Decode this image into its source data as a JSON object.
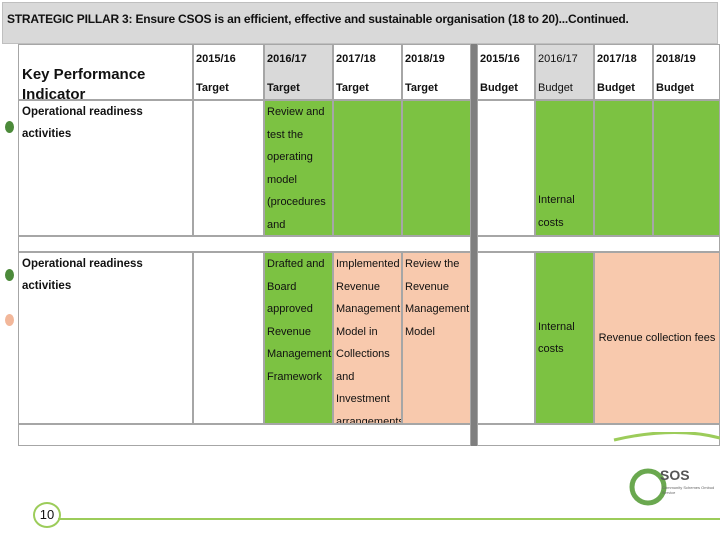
{
  "title": "STRATEGIC PILLAR 3: Ensure CSOS is an efficient, effective and sustainable organisation (18 to 20)...Continued.",
  "table": {
    "kpi_header": "Key Performance Indicator",
    "columns": [
      {
        "year": "2015/16",
        "sub": "Target"
      },
      {
        "year": "2016/17",
        "sub": "Target"
      },
      {
        "year": "2017/18",
        "sub": "Target"
      },
      {
        "year": "2018/19",
        "sub": "Target"
      },
      {
        "year": "2015/16",
        "sub": "Budget"
      },
      {
        "year": "2016/17",
        "sub": "Budget"
      },
      {
        "year": "2017/18",
        "sub": "Budget"
      },
      {
        "year": "2018/19",
        "sub": "Budget"
      }
    ],
    "rows": [
      {
        "label": "Operational readiness activities",
        "target_2016_17": "Review and test the operating model (procedures and systems) for service delivery",
        "budget_2016_17": "Internal costs"
      },
      {
        "label": "Operational readiness activities",
        "target_2016_17": "Drafted and Board approved Revenue Management Framework",
        "target_2017_18": "Implemented Revenue Management Model in Collections and Investment arrangements",
        "target_2018_19": "Review the Revenue Management Model",
        "budget_2016_17": "Internal costs",
        "budget_2017_19": "Revenue collection fees"
      }
    ]
  },
  "footer": {
    "page_number": "10",
    "logo_text": "SOS",
    "logo_sub": "Community Schemes Ombud Service"
  },
  "colors": {
    "green": "#7cc242",
    "peach": "#f8c9ad",
    "header_grey": "#d9d9d9",
    "accent_line": "#9ccc5a"
  }
}
